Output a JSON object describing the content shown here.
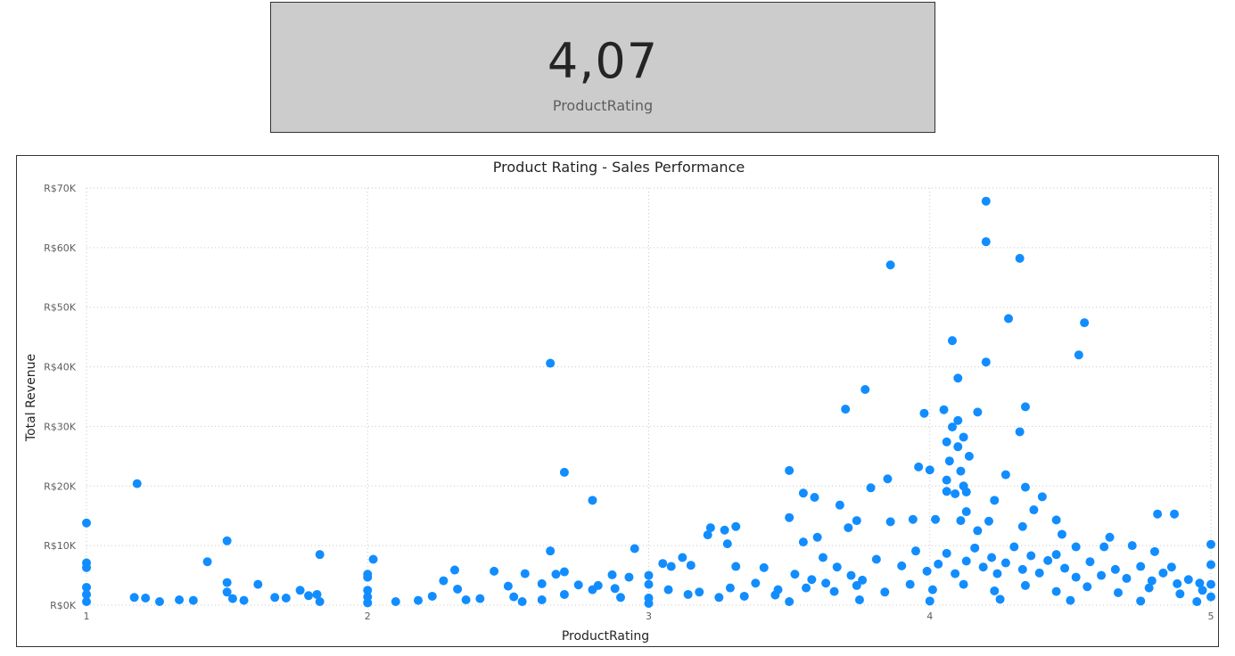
{
  "kpi": {
    "value": "4,07",
    "label": "ProductRating"
  },
  "colors": {
    "accent": "#118dff",
    "card_bg": "#cccccc"
  },
  "chart_data": {
    "type": "scatter",
    "title": "Product Rating - Sales Performance",
    "xlabel": "ProductRating",
    "ylabel": "Total Revenue",
    "xlim": [
      1,
      5
    ],
    "ylim": [
      0,
      70000
    ],
    "x_ticks": [
      "1",
      "2",
      "3",
      "4",
      "5"
    ],
    "y_ticks": [
      "R$0K",
      "R$10K",
      "R$20K",
      "R$30K",
      "R$40K",
      "R$50K",
      "R$60K",
      "R$70K"
    ],
    "grid": true,
    "points": [
      [
        4.2,
        67800
      ],
      [
        4.2,
        61000
      ],
      [
        4.32,
        58200
      ],
      [
        3.86,
        57100
      ],
      [
        4.28,
        48100
      ],
      [
        4.55,
        47400
      ],
      [
        4.08,
        44400
      ],
      [
        4.53,
        42000
      ],
      [
        2.65,
        40600
      ],
      [
        4.2,
        40800
      ],
      [
        4.1,
        38100
      ],
      [
        3.77,
        36200
      ],
      [
        4.34,
        33300
      ],
      [
        3.7,
        32900
      ],
      [
        4.05,
        32800
      ],
      [
        3.98,
        32200
      ],
      [
        4.17,
        32400
      ],
      [
        4.1,
        31000
      ],
      [
        4.32,
        29100
      ],
      [
        4.08,
        29900
      ],
      [
        4.12,
        28200
      ],
      [
        4.06,
        27400
      ],
      [
        4.1,
        26600
      ],
      [
        4.14,
        25000
      ],
      [
        4.07,
        24200
      ],
      [
        3.96,
        23200
      ],
      [
        3.5,
        22600
      ],
      [
        2.7,
        22300
      ],
      [
        4.0,
        22700
      ],
      [
        4.11,
        22500
      ],
      [
        4.27,
        21900
      ],
      [
        3.85,
        21200
      ],
      [
        4.06,
        21000
      ],
      [
        4.12,
        20000
      ],
      [
        4.34,
        19800
      ],
      [
        1.18,
        20400
      ],
      [
        3.79,
        19700
      ],
      [
        4.09,
        18700
      ],
      [
        4.06,
        19100
      ],
      [
        4.13,
        19000
      ],
      [
        4.4,
        18200
      ],
      [
        3.55,
        18800
      ],
      [
        3.59,
        18100
      ],
      [
        2.8,
        17600
      ],
      [
        4.23,
        17600
      ],
      [
        3.68,
        16800
      ],
      [
        4.37,
        16000
      ],
      [
        4.13,
        15700
      ],
      [
        4.81,
        15300
      ],
      [
        4.87,
        15300
      ],
      [
        3.5,
        14700
      ],
      [
        3.94,
        14400
      ],
      [
        4.02,
        14400
      ],
      [
        4.11,
        14200
      ],
      [
        4.21,
        14100
      ],
      [
        3.74,
        14200
      ],
      [
        4.45,
        14300
      ],
      [
        3.86,
        14000
      ],
      [
        4.33,
        13200
      ],
      [
        3.27,
        12600
      ],
      [
        3.31,
        13200
      ],
      [
        3.22,
        13000
      ],
      [
        3.71,
        13000
      ],
      [
        4.17,
        12500
      ],
      [
        4.47,
        11900
      ],
      [
        3.21,
        11800
      ],
      [
        3.6,
        11400
      ],
      [
        4.64,
        11400
      ],
      [
        1.5,
        10800
      ],
      [
        3.28,
        10300
      ],
      [
        4.72,
        10000
      ],
      [
        3.55,
        10600
      ],
      [
        4.52,
        9800
      ],
      [
        4.62,
        9800
      ],
      [
        2.95,
        9500
      ],
      [
        5.0,
        10200
      ],
      [
        2.65,
        9100
      ],
      [
        4.8,
        9000
      ],
      [
        3.12,
        8000
      ],
      [
        3.62,
        8000
      ],
      [
        4.45,
        8500
      ],
      [
        1.83,
        8500
      ],
      [
        2.02,
        7700
      ],
      [
        1.43,
        7300
      ],
      [
        3.05,
        7000
      ],
      [
        3.08,
        6500
      ],
      [
        3.15,
        6700
      ],
      [
        3.31,
        6500
      ],
      [
        3.41,
        6300
      ],
      [
        4.86,
        6400
      ],
      [
        1.0,
        13800
      ],
      [
        1.0,
        7100
      ],
      [
        1.0,
        6300
      ],
      [
        2.31,
        5900
      ],
      [
        2.45,
        5700
      ],
      [
        2.7,
        5600
      ],
      [
        2.67,
        5200
      ],
      [
        2.87,
        5100
      ],
      [
        2.56,
        5300
      ],
      [
        2.0,
        5200
      ],
      [
        2.0,
        4700
      ],
      [
        1.5,
        3800
      ],
      [
        1.61,
        3500
      ],
      [
        2.27,
        4100
      ],
      [
        2.32,
        2700
      ],
      [
        2.5,
        3200
      ],
      [
        2.82,
        3300
      ],
      [
        2.93,
        4700
      ],
      [
        3.0,
        5000
      ],
      [
        3.0,
        3500
      ],
      [
        3.07,
        2600
      ],
      [
        2.62,
        3600
      ],
      [
        2.75,
        3400
      ],
      [
        1.76,
        2500
      ],
      [
        1.82,
        1800
      ],
      [
        1.52,
        1100
      ],
      [
        1.21,
        1200
      ],
      [
        1.17,
        1300
      ],
      [
        1.33,
        900
      ],
      [
        1.38,
        800
      ],
      [
        1.26,
        600
      ],
      [
        1.56,
        800
      ],
      [
        1.67,
        1300
      ],
      [
        1.71,
        1200
      ],
      [
        1.79,
        1600
      ],
      [
        2.1,
        600
      ],
      [
        2.18,
        800
      ],
      [
        2.23,
        1500
      ],
      [
        2.4,
        1100
      ],
      [
        2.52,
        1400
      ],
      [
        2.62,
        900
      ],
      [
        2.7,
        1800
      ],
      [
        2.8,
        2600
      ],
      [
        2.88,
        2800
      ],
      [
        1.0,
        3000
      ],
      [
        1.0,
        1800
      ],
      [
        1.0,
        600
      ],
      [
        1.5,
        2200
      ],
      [
        1.83,
        600
      ],
      [
        2.0,
        2500
      ],
      [
        2.0,
        1400
      ],
      [
        2.0,
        400
      ],
      [
        2.35,
        900
      ],
      [
        2.55,
        600
      ],
      [
        2.9,
        1300
      ],
      [
        3.0,
        1200
      ],
      [
        3.0,
        300
      ],
      [
        3.18,
        2200
      ],
      [
        3.25,
        1300
      ],
      [
        3.34,
        1500
      ],
      [
        3.38,
        3700
      ],
      [
        3.46,
        2600
      ],
      [
        3.52,
        5200
      ],
      [
        3.58,
        4300
      ],
      [
        3.63,
        3700
      ],
      [
        3.67,
        6400
      ],
      [
        3.72,
        5000
      ],
      [
        3.76,
        4200
      ],
      [
        3.81,
        7700
      ],
      [
        3.9,
        6600
      ],
      [
        3.95,
        9100
      ],
      [
        3.99,
        5700
      ],
      [
        4.03,
        6900
      ],
      [
        4.06,
        8700
      ],
      [
        4.09,
        5300
      ],
      [
        4.13,
        7400
      ],
      [
        4.16,
        9600
      ],
      [
        4.19,
        6400
      ],
      [
        4.22,
        8000
      ],
      [
        4.24,
        5300
      ],
      [
        4.27,
        7100
      ],
      [
        4.3,
        9800
      ],
      [
        4.33,
        6000
      ],
      [
        4.36,
        8300
      ],
      [
        4.39,
        5400
      ],
      [
        4.42,
        7500
      ],
      [
        4.48,
        6200
      ],
      [
        4.52,
        4700
      ],
      [
        4.57,
        7300
      ],
      [
        4.61,
        5000
      ],
      [
        4.66,
        6000
      ],
      [
        4.7,
        4500
      ],
      [
        4.75,
        6500
      ],
      [
        4.79,
        4100
      ],
      [
        4.83,
        5400
      ],
      [
        4.88,
        3600
      ],
      [
        4.92,
        4300
      ],
      [
        4.96,
        3700
      ],
      [
        5.0,
        6800
      ],
      [
        5.0,
        3500
      ],
      [
        5.0,
        1400
      ],
      [
        3.14,
        1800
      ],
      [
        3.29,
        2900
      ],
      [
        3.45,
        1700
      ],
      [
        3.56,
        2900
      ],
      [
        3.66,
        2300
      ],
      [
        3.74,
        3300
      ],
      [
        3.84,
        2200
      ],
      [
        3.93,
        3500
      ],
      [
        4.01,
        2600
      ],
      [
        4.12,
        3500
      ],
      [
        4.23,
        2400
      ],
      [
        4.34,
        3300
      ],
      [
        4.45,
        2300
      ],
      [
        4.56,
        3100
      ],
      [
        4.67,
        2100
      ],
      [
        4.78,
        2900
      ],
      [
        4.89,
        1900
      ],
      [
        4.97,
        2500
      ],
      [
        3.5,
        600
      ],
      [
        3.75,
        900
      ],
      [
        4.0,
        700
      ],
      [
        4.25,
        1000
      ],
      [
        4.5,
        800
      ],
      [
        4.75,
        700
      ],
      [
        4.95,
        600
      ]
    ]
  }
}
